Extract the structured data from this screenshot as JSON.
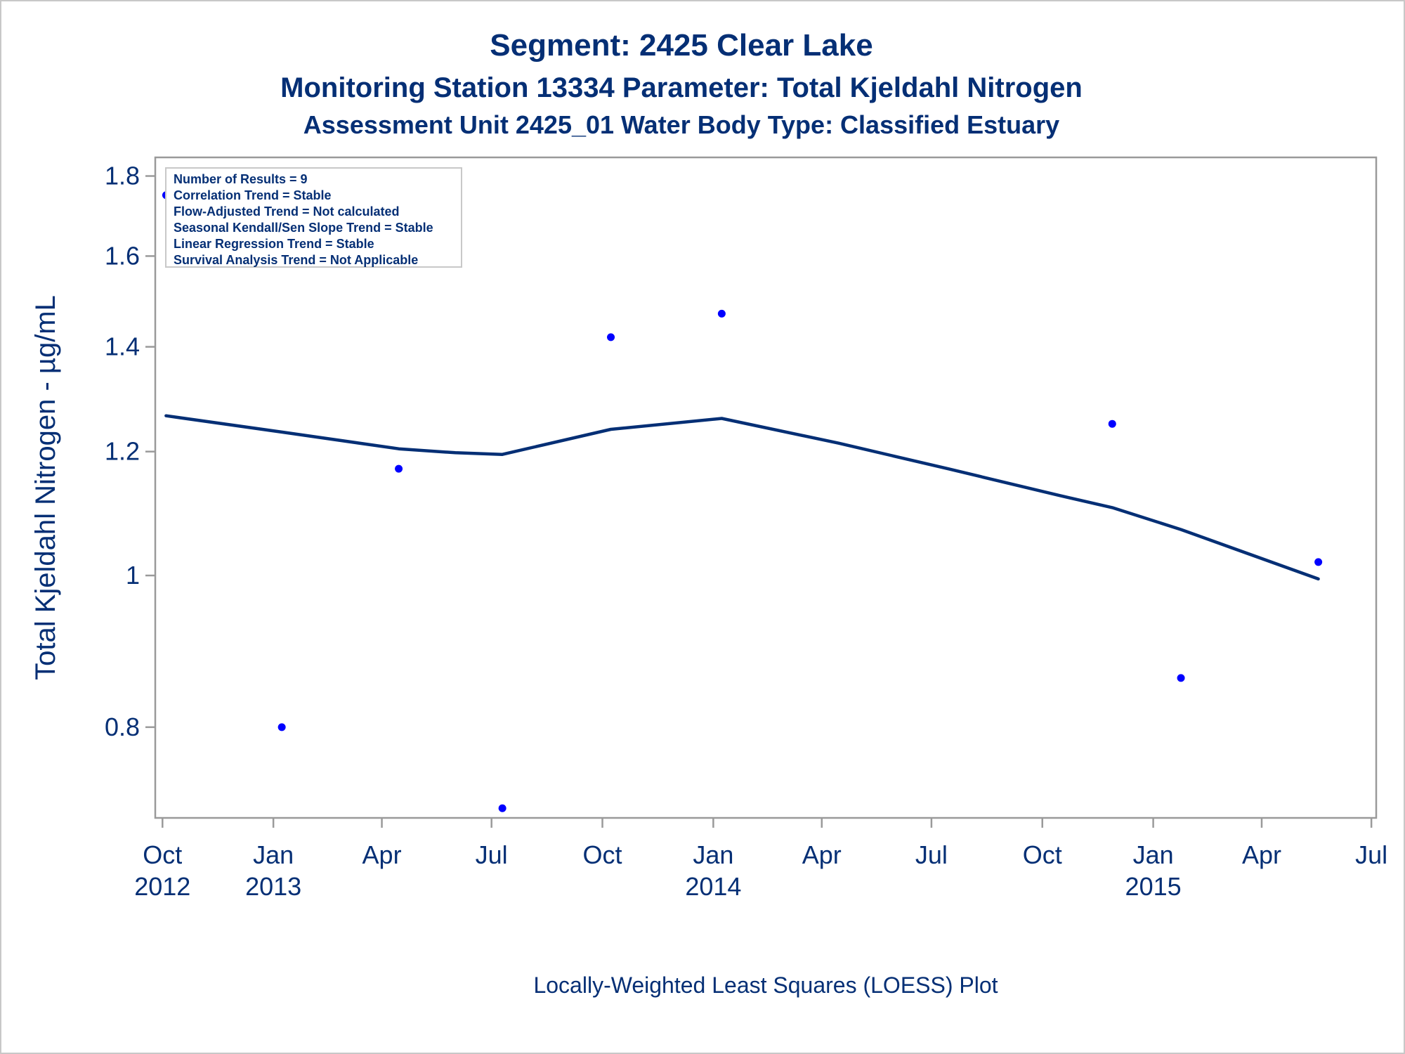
{
  "chart_data": {
    "type": "scatter",
    "title": "Segment: 2425  Clear Lake",
    "subtitle": "Monitoring Station 13334 Parameter: Total Kjeldahl Nitrogen",
    "subtitle2": "Assessment Unit 2425_01   Water Body Type: Classified Estuary",
    "ylabel": "Total Kjeldahl Nitrogen -  µg/mL",
    "xlabel": "",
    "footnote": "Locally-Weighted Least Squares (LOESS) Plot",
    "y_scale": "log",
    "ylim": [
      0.7,
      1.85
    ],
    "xlim": [
      "2012-09-25",
      "2015-07-05"
    ],
    "y_ticks": [
      {
        "value": 0.8,
        "label": "0.8"
      },
      {
        "value": 1.0,
        "label": "1"
      },
      {
        "value": 1.2,
        "label": "1.2"
      },
      {
        "value": 1.4,
        "label": "1.4"
      },
      {
        "value": 1.6,
        "label": "1.6"
      },
      {
        "value": 1.8,
        "label": "1.8"
      }
    ],
    "x_ticks": [
      {
        "date": "2012-10-01",
        "month": "Oct",
        "year": "2012"
      },
      {
        "date": "2013-01-01",
        "month": "Jan",
        "year": "2013"
      },
      {
        "date": "2013-04-01",
        "month": "Apr",
        "year": ""
      },
      {
        "date": "2013-07-01",
        "month": "Jul",
        "year": ""
      },
      {
        "date": "2013-10-01",
        "month": "Oct",
        "year": ""
      },
      {
        "date": "2014-01-01",
        "month": "Jan",
        "year": "2014"
      },
      {
        "date": "2014-04-01",
        "month": "Apr",
        "year": ""
      },
      {
        "date": "2014-07-01",
        "month": "Jul",
        "year": ""
      },
      {
        "date": "2014-10-01",
        "month": "Oct",
        "year": ""
      },
      {
        "date": "2015-01-01",
        "month": "Jan",
        "year": "2015"
      },
      {
        "date": "2015-04-01",
        "month": "Apr",
        "year": ""
      },
      {
        "date": "2015-07-01",
        "month": "Jul",
        "year": ""
      }
    ],
    "series": [
      {
        "type": "scatter",
        "points": [
          {
            "x": "2012-10-04",
            "y": 1.75
          },
          {
            "x": "2013-01-08",
            "y": 0.8
          },
          {
            "x": "2013-04-15",
            "y": 1.17
          },
          {
            "x": "2013-07-10",
            "y": 0.71
          },
          {
            "x": "2013-10-08",
            "y": 1.42
          },
          {
            "x": "2014-01-08",
            "y": 1.47
          },
          {
            "x": "2014-11-28",
            "y": 1.25
          },
          {
            "x": "2015-01-24",
            "y": 0.86
          },
          {
            "x": "2015-05-18",
            "y": 1.02
          }
        ]
      },
      {
        "type": "line",
        "points": [
          {
            "x": "2012-10-04",
            "y": 1.265
          },
          {
            "x": "2013-01-08",
            "y": 1.235
          },
          {
            "x": "2013-04-15",
            "y": 1.205
          },
          {
            "x": "2013-06-01",
            "y": 1.198
          },
          {
            "x": "2013-07-10",
            "y": 1.195
          },
          {
            "x": "2013-10-08",
            "y": 1.24
          },
          {
            "x": "2014-01-08",
            "y": 1.26
          },
          {
            "x": "2014-04-15",
            "y": 1.215
          },
          {
            "x": "2014-07-15",
            "y": 1.17
          },
          {
            "x": "2014-10-15",
            "y": 1.125
          },
          {
            "x": "2014-11-28",
            "y": 1.105
          },
          {
            "x": "2015-01-24",
            "y": 1.07
          },
          {
            "x": "2015-05-18",
            "y": 0.995
          }
        ]
      }
    ],
    "inset_lines": [
      "Number of Results = 9",
      "Correlation Trend = Stable",
      "Flow-Adjusted Trend = Not calculated",
      "Seasonal Kendall/Sen Slope Trend = Stable",
      "Linear Regression Trend = Stable",
      "Survival Analysis Trend = Not Applicable"
    ],
    "colors": {
      "points": "#0000ff",
      "line": "#052f75",
      "text": "#052f75",
      "frame": "#9a9a9a"
    }
  }
}
